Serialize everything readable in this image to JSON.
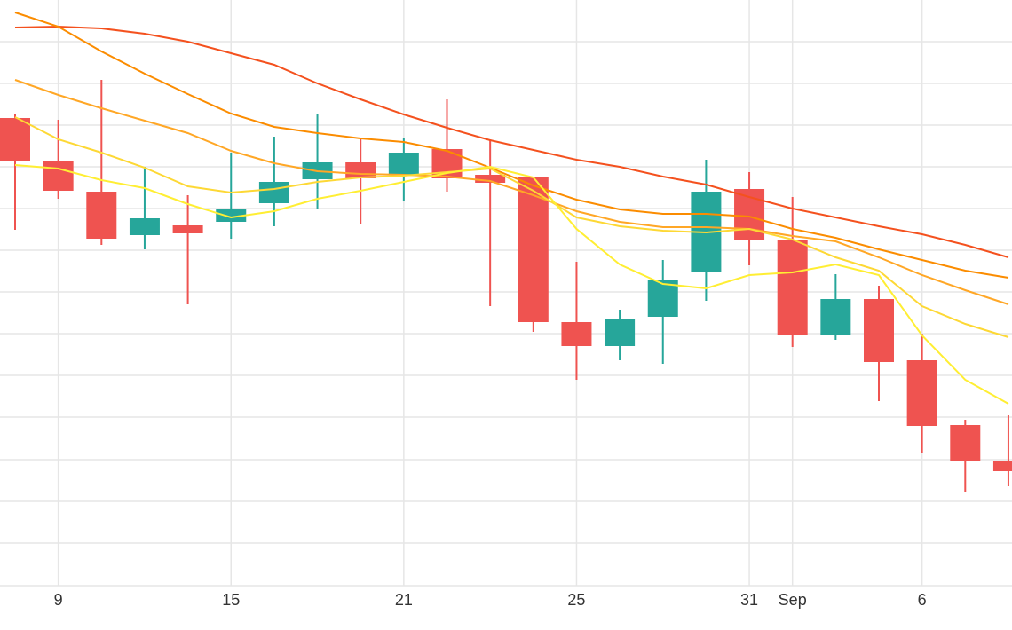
{
  "chart_data": {
    "type": "candlestick",
    "categories": [
      null,
      "9",
      null,
      null,
      null,
      "15",
      null,
      null,
      null,
      "21",
      null,
      null,
      null,
      "25",
      null,
      null,
      null,
      "31",
      "Sep",
      null,
      null,
      "6",
      null,
      null
    ],
    "open": [
      527,
      479,
      444,
      395,
      406,
      410,
      431,
      458,
      477,
      463,
      492,
      463,
      460,
      297,
      270,
      303,
      353,
      447,
      389,
      283,
      323,
      254,
      181,
      141
    ],
    "close": [
      479,
      445,
      391,
      414,
      397,
      425,
      455,
      477,
      459,
      488,
      459,
      454,
      297,
      270,
      301,
      344,
      444,
      389,
      283,
      323,
      252,
      180,
      140,
      129
    ],
    "high": [
      532,
      525,
      570,
      472,
      440,
      488,
      506,
      532,
      503,
      505,
      548,
      503,
      460,
      365,
      311,
      367,
      480,
      466,
      438,
      351,
      338,
      284,
      187,
      192
    ],
    "low": [
      401,
      436,
      384,
      379,
      317,
      391,
      405,
      425,
      408,
      434,
      444,
      315,
      286,
      232,
      254,
      250,
      321,
      361,
      269,
      277,
      208,
      150,
      105,
      112
    ],
    "up_color": "#26a69a",
    "down_color": "#ef5350",
    "lines": [
      {
        "color": "#f4511e",
        "values": [
          629,
          630,
          628,
          622,
          613,
          600,
          587,
          566,
          548,
          531,
          516,
          502,
          491,
          480,
          472,
          461,
          452,
          438,
          425,
          415,
          405,
          396,
          384,
          370
        ]
      },
      {
        "color": "#fb8c00",
        "values": [
          646,
          630,
          602,
          577,
          554,
          532,
          517,
          510,
          504,
          500,
          490,
          471,
          451,
          435,
          424,
          419,
          419,
          416,
          402,
          392,
          379,
          367,
          355,
          347
        ]
      },
      {
        "color": "#ffa726",
        "values": [
          570,
          553,
          538,
          524,
          510,
          490,
          476,
          467,
          464,
          463,
          461,
          456,
          440,
          422,
          410,
          404,
          404,
          402,
          394,
          388,
          370,
          350,
          333,
          317
        ]
      },
      {
        "color": "#fdd835",
        "values": [
          528,
          503,
          488,
          471,
          450,
          443,
          447,
          455,
          460,
          462,
          466,
          470,
          445,
          415,
          405,
          400,
          398,
          402,
          390,
          370,
          355,
          315,
          295,
          280
        ]
      },
      {
        "color": "#ffee33",
        "values": [
          474,
          470,
          457,
          448,
          430,
          415,
          422,
          436,
          445,
          455,
          465,
          472,
          460,
          402,
          362,
          340,
          335,
          350,
          353,
          362,
          350,
          282,
          232,
          205
        ]
      }
    ],
    "ylim": [
      0,
      660
    ],
    "yticks": [
      0,
      48,
      95,
      142,
      190,
      237,
      284,
      331,
      378,
      425,
      472,
      519,
      566,
      613
    ],
    "grid": true
  }
}
